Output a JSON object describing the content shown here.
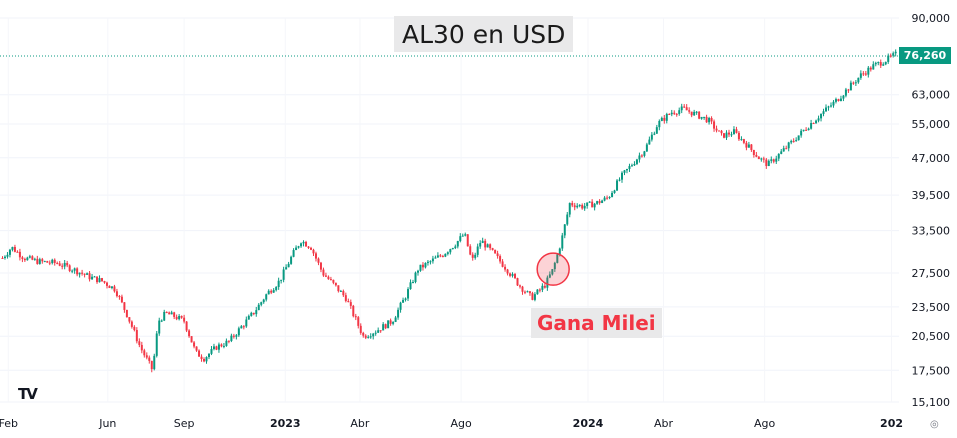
{
  "chart_data": {
    "type": "candlestick",
    "title": "AL30 en USD",
    "annotation": "Gana Milei",
    "current_price": "76,260",
    "y_scale": "log",
    "ylim": [
      15100,
      90000
    ],
    "y_ticks": [
      90000,
      63000,
      55000,
      47000,
      39500,
      33500,
      27500,
      23500,
      20500,
      17500,
      15100
    ],
    "y_tick_labels": [
      "90,000",
      "63,000",
      "55,000",
      "47,000",
      "39,500",
      "33,500",
      "27,500",
      "23,500",
      "20,500",
      "17,500",
      "15,100"
    ],
    "x_tick_labels": [
      "Feb",
      "Jun",
      "Sep",
      "2023",
      "Abr",
      "Ago",
      "2024",
      "Abr",
      "Ago",
      "202"
    ],
    "x_tick_dates": [
      "2022-02-01",
      "2022-06-01",
      "2022-09-01",
      "2023-01-01",
      "2023-04-01",
      "2023-08-01",
      "2024-01-01",
      "2024-04-01",
      "2024-08-01",
      "2025-01-01"
    ],
    "x_range": [
      "2022-01-22",
      "2025-01-10"
    ],
    "annotation_date": "2023-11-20",
    "annotation_value": 28000,
    "colors": {
      "up": "#089981",
      "down": "#f23645",
      "marker": "#f23645"
    },
    "price_path": [
      [
        "2022-01-25",
        29500
      ],
      [
        "2022-02-05",
        31000
      ],
      [
        "2022-02-20",
        29500
      ],
      [
        "2022-03-10",
        29000
      ],
      [
        "2022-04-01",
        28800
      ],
      [
        "2022-04-20",
        28000
      ],
      [
        "2022-05-10",
        27000
      ],
      [
        "2022-05-25",
        26500
      ],
      [
        "2022-06-10",
        25500
      ],
      [
        "2022-06-25",
        22500
      ],
      [
        "2022-07-10",
        19500
      ],
      [
        "2022-07-25",
        17500
      ],
      [
        "2022-08-01",
        22000
      ],
      [
        "2022-08-10",
        22800
      ],
      [
        "2022-08-20",
        22500
      ],
      [
        "2022-09-01",
        22000
      ],
      [
        "2022-09-15",
        19000
      ],
      [
        "2022-09-25",
        18500
      ],
      [
        "2022-10-10",
        19500
      ],
      [
        "2022-10-25",
        20000
      ],
      [
        "2022-11-10",
        21500
      ],
      [
        "2022-11-25",
        23000
      ],
      [
        "2022-12-10",
        25000
      ],
      [
        "2022-12-25",
        26500
      ],
      [
        "2023-01-10",
        30000
      ],
      [
        "2023-01-20",
        32000
      ],
      [
        "2023-02-01",
        31000
      ],
      [
        "2023-02-15",
        27500
      ],
      [
        "2023-03-01",
        26000
      ],
      [
        "2023-03-15",
        24500
      ],
      [
        "2023-03-25",
        22500
      ],
      [
        "2023-04-05",
        20500
      ],
      [
        "2023-04-20",
        21000
      ],
      [
        "2023-05-10",
        22000
      ],
      [
        "2023-05-25",
        24500
      ],
      [
        "2023-06-10",
        28000
      ],
      [
        "2023-06-25",
        29000
      ],
      [
        "2023-07-10",
        30000
      ],
      [
        "2023-07-25",
        31500
      ],
      [
        "2023-08-05",
        33000
      ],
      [
        "2023-08-14",
        29000
      ],
      [
        "2023-08-25",
        32000
      ],
      [
        "2023-09-10",
        30000
      ],
      [
        "2023-09-25",
        28000
      ],
      [
        "2023-10-10",
        26000
      ],
      [
        "2023-10-25",
        24500
      ],
      [
        "2023-11-10",
        26000
      ],
      [
        "2023-11-20",
        28000
      ],
      [
        "2023-11-30",
        32000
      ],
      [
        "2023-12-10",
        38000
      ],
      [
        "2023-12-25",
        37500
      ],
      [
        "2024-01-10",
        38000
      ],
      [
        "2024-01-25",
        39000
      ],
      [
        "2024-02-10",
        43000
      ],
      [
        "2024-02-25",
        46000
      ],
      [
        "2024-03-10",
        49000
      ],
      [
        "2024-03-25",
        55000
      ],
      [
        "2024-04-10",
        58000
      ],
      [
        "2024-04-25",
        59000
      ],
      [
        "2024-05-10",
        57500
      ],
      [
        "2024-05-25",
        56000
      ],
      [
        "2024-06-10",
        52000
      ],
      [
        "2024-06-25",
        53000
      ],
      [
        "2024-07-10",
        50000
      ],
      [
        "2024-07-25",
        47000
      ],
      [
        "2024-08-05",
        45500
      ],
      [
        "2024-08-20",
        48000
      ],
      [
        "2024-09-05",
        51000
      ],
      [
        "2024-09-25",
        55000
      ],
      [
        "2024-10-10",
        58000
      ],
      [
        "2024-10-25",
        61000
      ],
      [
        "2024-11-10",
        65000
      ],
      [
        "2024-11-25",
        69000
      ],
      [
        "2024-12-10",
        72000
      ],
      [
        "2024-12-25",
        74000
      ],
      [
        "2025-01-08",
        76260
      ]
    ]
  }
}
